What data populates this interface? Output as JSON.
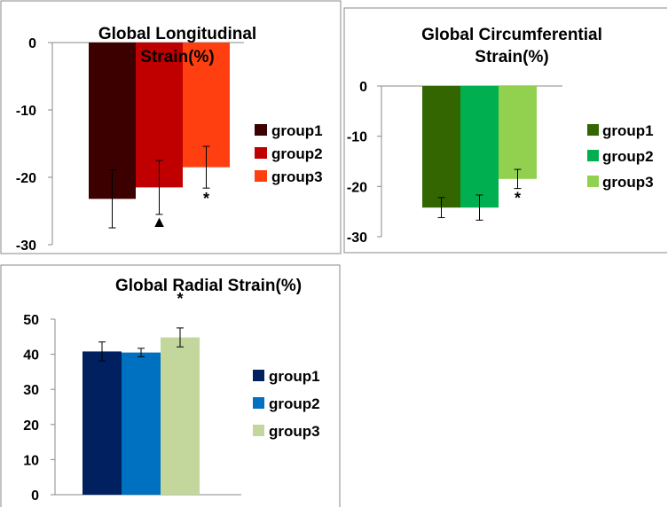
{
  "chart_data": [
    {
      "type": "bar",
      "title": "Global Longitudinal Strain(%)",
      "title_lines": [
        "Global Longitudinal",
        "Strain(%)"
      ],
      "xlabel": "",
      "ylabel": "",
      "ylim": [
        -30,
        0
      ],
      "yticks": [
        0,
        -10,
        -20,
        -30
      ],
      "ytick_labels": [
        "0",
        "-10",
        "-20",
        "-30"
      ],
      "grid": false,
      "legend": "right",
      "series": [
        {
          "name": "group1",
          "value": -23.2,
          "error": 4.3,
          "color": "#3d0000"
        },
        {
          "name": "group2",
          "value": -21.5,
          "error": 4.0,
          "color": "#c00000"
        },
        {
          "name": "group3",
          "value": -18.5,
          "error": 3.1,
          "color": "#ff3f0f"
        }
      ],
      "annotations": [
        {
          "series": "group2",
          "text": "▲"
        },
        {
          "series": "group3",
          "text": "*"
        }
      ]
    },
    {
      "type": "bar",
      "title": "Global Circumferential Strain(%)",
      "title_lines": [
        "Global Circumferential",
        "Strain(%)"
      ],
      "xlabel": "",
      "ylabel": "",
      "ylim": [
        -30,
        0
      ],
      "yticks": [
        0,
        -10,
        -20,
        -30
      ],
      "ytick_labels": [
        "0",
        "-10",
        "-20",
        "-30"
      ],
      "grid": false,
      "legend": "right",
      "series": [
        {
          "name": "group1",
          "value": -24.2,
          "error": 2.0,
          "color": "#336600"
        },
        {
          "name": "group2",
          "value": -24.2,
          "error": 2.5,
          "color": "#00b050"
        },
        {
          "name": "group3",
          "value": -18.5,
          "error": 1.9,
          "color": "#92d050"
        }
      ],
      "annotations": [
        {
          "series": "group3",
          "text": "*"
        }
      ]
    },
    {
      "type": "bar",
      "title": "Global Radial  Strain(%)",
      "title_lines": [
        "Global Radial  Strain(%)"
      ],
      "xlabel": "",
      "ylabel": "",
      "ylim": [
        0,
        50
      ],
      "yticks": [
        0,
        10,
        20,
        30,
        40,
        50
      ],
      "ytick_labels": [
        "0",
        "10",
        "20",
        "30",
        "40",
        "50"
      ],
      "grid": false,
      "legend": "right",
      "series": [
        {
          "name": "group1",
          "value": 40.8,
          "error": 2.7,
          "color": "#002060"
        },
        {
          "name": "group2",
          "value": 40.5,
          "error": 1.2,
          "color": "#0070c0"
        },
        {
          "name": "group3",
          "value": 44.8,
          "error": 2.7,
          "color": "#c3d69b"
        }
      ],
      "annotations": [
        {
          "series": "group3",
          "text": "*"
        }
      ]
    }
  ]
}
